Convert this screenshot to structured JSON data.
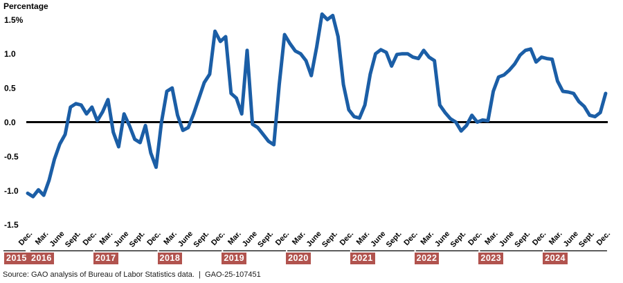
{
  "header": {
    "y_axis_title": "Percentage"
  },
  "footer": {
    "source_note": "Source: GAO analysis of Bureau of Labor Statistics data.  |  GAO-25-107451"
  },
  "colors": {
    "line": "#1B5EA6",
    "axis": "#000000",
    "tick_text": "#000000",
    "year_box_bg": "#B1534E",
    "year_box_text": "#FFFFFF",
    "source_text": "#1A1A1A",
    "background": "#FFFFFF"
  },
  "chart_data": {
    "type": "line",
    "series_name": "Percentage",
    "x_start": "Dec. 2015",
    "x_end": "Dec. 2024",
    "x_interval": "monthly",
    "ylim": [
      -1.5,
      1.5
    ],
    "grid": "none",
    "legend": "none",
    "values": [
      -1.04,
      -1.09,
      -0.99,
      -1.07,
      -0.85,
      -0.54,
      -0.32,
      -0.18,
      0.22,
      0.27,
      0.25,
      0.12,
      0.22,
      0.02,
      0.15,
      0.33,
      -0.15,
      -0.36,
      0.12,
      -0.05,
      -0.25,
      -0.3,
      -0.05,
      -0.45,
      -0.66,
      0.0,
      0.45,
      0.5,
      0.1,
      -0.12,
      -0.08,
      0.12,
      0.35,
      0.58,
      0.7,
      1.33,
      1.18,
      1.25,
      0.42,
      0.35,
      0.12,
      1.05,
      -0.03,
      -0.08,
      -0.18,
      -0.28,
      -0.33,
      0.55,
      1.28,
      1.15,
      1.04,
      1.0,
      0.9,
      0.68,
      1.1,
      1.58,
      1.5,
      1.56,
      1.25,
      0.55,
      0.18,
      0.08,
      0.06,
      0.25,
      0.7,
      1.0,
      1.06,
      1.02,
      0.82,
      0.99,
      1.0,
      1.0,
      0.95,
      0.93,
      1.05,
      0.95,
      0.9,
      0.25,
      0.14,
      0.05,
      0.0,
      -0.13,
      -0.05,
      0.1,
      0.0,
      0.03,
      0.02,
      0.45,
      0.66,
      0.69,
      0.76,
      0.85,
      0.98,
      1.05,
      1.07,
      0.88,
      0.95,
      0.93,
      0.92,
      0.6,
      0.45,
      0.44,
      0.42,
      0.3,
      0.23,
      0.1,
      0.08,
      0.14,
      0.42
    ],
    "y_ticks": [
      {
        "label": "1.5%",
        "value": 1.5
      },
      {
        "label": "1.0",
        "value": 1.0
      },
      {
        "label": "0.5",
        "value": 0.5
      },
      {
        "label": "0.0",
        "value": 0.0
      },
      {
        "label": "-0.5",
        "value": -0.5
      },
      {
        "label": "-1.0",
        "value": -1.0
      },
      {
        "label": "-1.5",
        "value": -1.5
      }
    ],
    "x_tick_labels": [
      "Dec.",
      "Mar.",
      "June",
      "Sept.",
      "Dec.",
      "Mar.",
      "June",
      "Sept.",
      "Dec.",
      "Mar.",
      "June",
      "Sept.",
      "Dec.",
      "Mar.",
      "June",
      "Sept.",
      "Dec.",
      "Mar.",
      "June",
      "Sept.",
      "Dec.",
      "Mar.",
      "June",
      "Sept.",
      "Dec.",
      "Mar.",
      "June",
      "Sept.",
      "Dec.",
      "Mar.",
      "June",
      "Sept.",
      "Dec.",
      "Mar.",
      "June",
      "Sept.",
      "Dec."
    ],
    "year_labels": [
      "2015",
      "2016",
      "2017",
      "2018",
      "2019",
      "2020",
      "2021",
      "2022",
      "2023",
      "2024"
    ]
  }
}
